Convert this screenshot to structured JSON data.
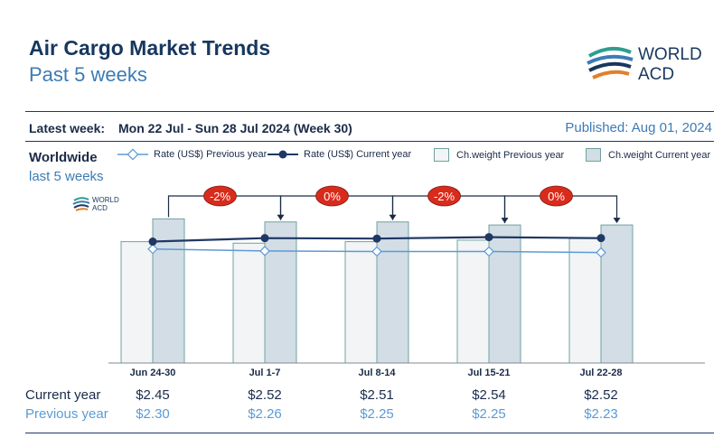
{
  "header": {
    "title": "Air Cargo Market Trends",
    "subtitle": "Past 5 weeks",
    "logo_text": [
      "WORLD",
      "ACD"
    ]
  },
  "info": {
    "latest_label": "Latest week:",
    "latest_value": "Mon 22 Jul - Sun 28 Jul 2024 (Week 30)",
    "published": "Published: Aug 01, 2024",
    "region": "Worldwide",
    "region_sub": "last 5 weeks"
  },
  "legend": {
    "rate_prev": "Rate (US$) Previous year",
    "rate_cur": "Rate (US$) Current year",
    "cw_prev": "Ch.weight Previous year",
    "cw_cur": "Ch.weight Current year"
  },
  "table": {
    "current_label": "Current year",
    "previous_label": "Previous year",
    "current": [
      "$2.45",
      "$2.52",
      "$2.51",
      "$2.54",
      "$2.52"
    ],
    "previous": [
      "$2.30",
      "$2.26",
      "$2.25",
      "$2.25",
      "$2.23"
    ]
  },
  "colors": {
    "navy": "#17375e",
    "blue": "#3d7bb5",
    "bar_prev_fill": "#f2f4f5",
    "bar_cur_fill": "#d2dde6",
    "bar_edge": "#6fa39c",
    "badge": "#d92b1c"
  },
  "chart_data": {
    "type": "bar",
    "categories": [
      "Jun 24-30",
      "Jul 1-7",
      "Jul 8-14",
      "Jul 15-21",
      "Jul 22-28"
    ],
    "series": [
      {
        "name": "Ch.weight Previous year",
        "kind": "bar",
        "values": [
          0.8,
          0.79,
          0.8,
          0.81,
          0.82
        ]
      },
      {
        "name": "Ch.weight Current year",
        "kind": "bar",
        "values": [
          0.95,
          0.93,
          0.93,
          0.91,
          0.91
        ]
      },
      {
        "name": "Rate (US$) Previous year",
        "kind": "line",
        "values": [
          2.3,
          2.26,
          2.25,
          2.25,
          2.23
        ]
      },
      {
        "name": "Rate (US$) Current year",
        "kind": "line",
        "values": [
          2.45,
          2.52,
          2.51,
          2.54,
          2.52
        ]
      }
    ],
    "changes": [
      "-2%",
      "0%",
      "-2%",
      "0%"
    ],
    "y_bar_range": [
      0,
      1
    ],
    "y_rate_range": [
      0,
      3.68
    ],
    "grid": false,
    "legend_position": "top"
  }
}
